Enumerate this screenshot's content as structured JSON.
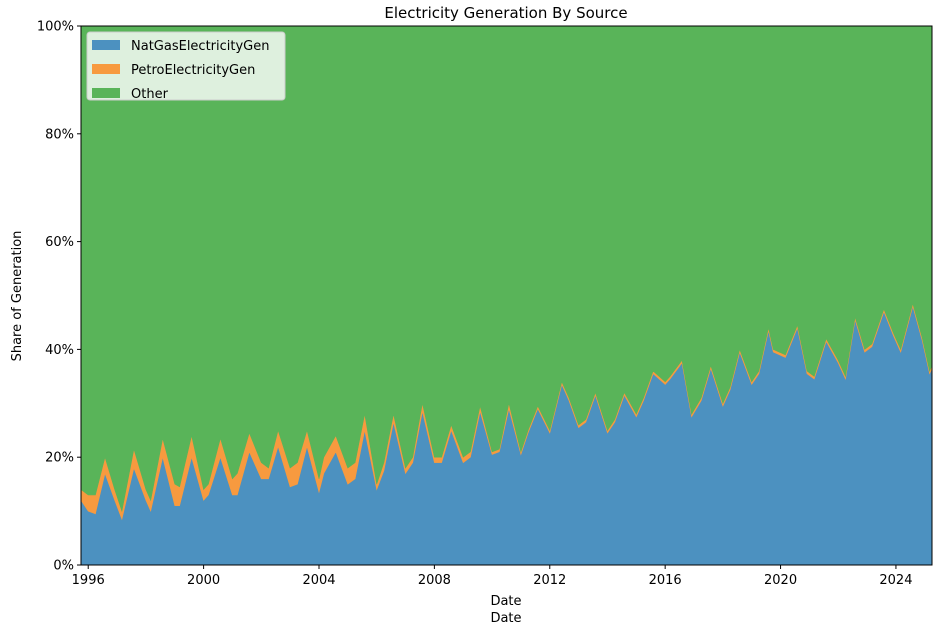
{
  "chart_data": {
    "type": "area",
    "stacked": true,
    "normalized": true,
    "title": "Electricity Generation By Source",
    "xlabel": "Date",
    "xlabel_repeat": "Date",
    "ylabel": "Share of Generation",
    "xlim": [
      "1995-10",
      "2025-04"
    ],
    "ylim": [
      0,
      100
    ],
    "x_ticks": [
      "1996",
      "2000",
      "2004",
      "2008",
      "2012",
      "2016",
      "2020",
      "2024"
    ],
    "y_ticks": [
      "0%",
      "20%",
      "40%",
      "60%",
      "80%",
      "100%"
    ],
    "y_tick_values": [
      0,
      20,
      40,
      60,
      80,
      100
    ],
    "grid": false,
    "legend_position": "top-left",
    "colors": {
      "NatGasElectricityGen": "#4c91c0",
      "PetroElectricityGen": "#f79a3f",
      "Other": "#59b459"
    },
    "dates": [
      "1995-10",
      "1996-01",
      "1996-04",
      "1996-08",
      "1996-12",
      "1997-03",
      "1997-08",
      "1998-01",
      "1998-03",
      "1998-08",
      "1999-01",
      "1999-03",
      "1999-08",
      "2000-01",
      "2000-03",
      "2000-08",
      "2001-01",
      "2001-03",
      "2001-08",
      "2002-01",
      "2002-04",
      "2002-08",
      "2003-01",
      "2003-04",
      "2003-08",
      "2004-01",
      "2004-03",
      "2004-08",
      "2005-01",
      "2005-04",
      "2005-08",
      "2006-01",
      "2006-04",
      "2006-08",
      "2007-01",
      "2007-04",
      "2007-08",
      "2008-01",
      "2008-04",
      "2008-08",
      "2009-01",
      "2009-04",
      "2009-08",
      "2010-01",
      "2010-04",
      "2010-08",
      "2011-01",
      "2011-04",
      "2011-08",
      "2012-01",
      "2012-06",
      "2012-09",
      "2013-01",
      "2013-04",
      "2013-08",
      "2014-01",
      "2014-04",
      "2014-08",
      "2015-01",
      "2015-04",
      "2015-08",
      "2016-01",
      "2016-03",
      "2016-08",
      "2016-12",
      "2017-04",
      "2017-08",
      "2018-01",
      "2018-04",
      "2018-08",
      "2019-01",
      "2019-04",
      "2019-08",
      "2019-10",
      "2020-03",
      "2020-08",
      "2020-12",
      "2021-03",
      "2021-08",
      "2022-01",
      "2022-04",
      "2022-08",
      "2022-12",
      "2023-03",
      "2023-08",
      "2023-12",
      "2024-03",
      "2024-08",
      "2024-12",
      "2025-03",
      "2025-04"
    ],
    "series": [
      {
        "name": "NatGasElectricityGen",
        "values": [
          12,
          10,
          9.5,
          17,
          12,
          8.5,
          18,
          12,
          10,
          20,
          11,
          11,
          20,
          12,
          13,
          20,
          13,
          13,
          21,
          16,
          16,
          22,
          14.5,
          15,
          22,
          13.5,
          17,
          21,
          15,
          16,
          25,
          14,
          17.5,
          26.5,
          17,
          19,
          28.5,
          19,
          19,
          25,
          19,
          20,
          28.5,
          20.5,
          21,
          29,
          20.5,
          24.5,
          29,
          24.5,
          33.5,
          30.5,
          25.5,
          26.5,
          31.5,
          24.5,
          26.5,
          31.5,
          27.5,
          30.5,
          35.5,
          33.5,
          34.5,
          37.5,
          27.5,
          30.5,
          36.5,
          29.5,
          32.5,
          39.5,
          33.5,
          35.5,
          43.5,
          39.5,
          38.5,
          44,
          35.5,
          34.5,
          41.5,
          37.5,
          34.5,
          45.5,
          39.5,
          40.5,
          47,
          42.5,
          39.5,
          48,
          41.5,
          35.5,
          36.5
        ]
      },
      {
        "name": "PetroElectricityGen",
        "values": [
          2,
          3,
          3.5,
          3,
          2,
          1.5,
          3.5,
          2,
          2,
          3.5,
          4,
          3.5,
          4,
          2,
          2,
          3.5,
          3,
          4,
          3.5,
          3,
          2,
          3,
          3.5,
          4,
          3,
          2.5,
          3,
          3,
          3,
          3,
          3,
          1,
          1.5,
          1.5,
          1,
          1,
          1.5,
          1,
          1,
          1,
          1,
          1,
          1,
          0.5,
          0.5,
          1,
          0.5,
          0.5,
          0.5,
          0.5,
          0.5,
          0.5,
          0.5,
          0.5,
          0.5,
          0.5,
          0.5,
          0.5,
          0.5,
          0.5,
          0.5,
          0.5,
          0.5,
          0.5,
          0.5,
          0.5,
          0.5,
          0.5,
          0.5,
          0.5,
          0.5,
          0.5,
          0.5,
          0.5,
          0.5,
          0.5,
          0.5,
          0.5,
          0.5,
          0.5,
          0.5,
          0.5,
          0.5,
          0.5,
          0.5,
          0.5,
          0.5,
          0.5,
          0.5,
          0.5,
          0.5
        ]
      },
      {
        "name": "Other",
        "values": "remainder to 100%"
      }
    ]
  }
}
